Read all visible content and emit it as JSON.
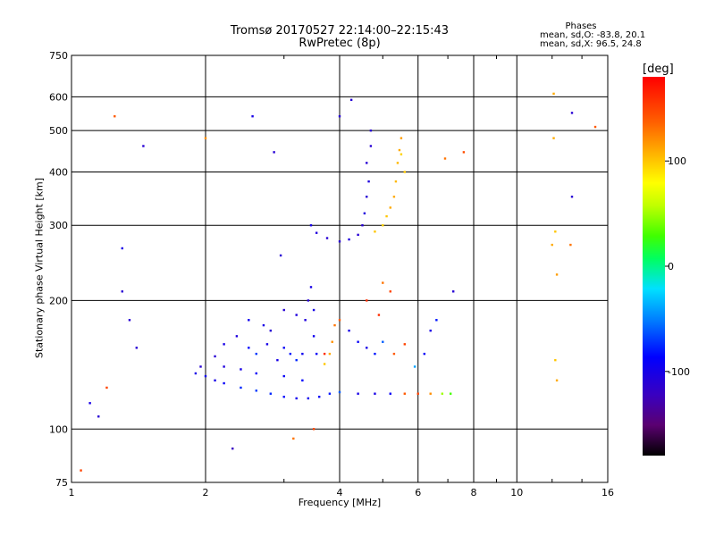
{
  "header": {
    "title_line1": "Tromsø 20170527 22:14:00–22:15:43",
    "title_line2": "RwPretec (8p)"
  },
  "phase_stats": {
    "title": "Phases",
    "o_mode": "mean, sd,O: -83.8, 20.1",
    "x_mode": "mean, sd,X:  96.5, 24.8"
  },
  "colorbar": {
    "label": "[deg]",
    "ticks": [
      {
        "value": 100,
        "label": "100"
      },
      {
        "value": 0,
        "label": "0"
      },
      {
        "value": -100,
        "label": "-100"
      }
    ],
    "range": [
      -180,
      180
    ]
  },
  "chart_data": {
    "type": "scatter",
    "title": "Tromsø 20170527 22:14:00–22:15:43",
    "subtitle": "RwPretec (8p)",
    "xlabel": "Frequency [MHz]",
    "ylabel": "Stationary phase Virtual Height [km]",
    "xscale": "log",
    "yscale": "log",
    "xlim": [
      1,
      16
    ],
    "ylim": [
      75,
      750
    ],
    "x_ticks": [
      1,
      2,
      4,
      6,
      8,
      10,
      16
    ],
    "y_ticks": [
      75,
      100,
      200,
      300,
      400,
      500,
      600,
      750
    ],
    "x_grid": [
      2,
      4,
      6,
      8,
      10
    ],
    "y_grid": [
      100,
      200,
      300,
      400,
      500,
      600
    ],
    "series": [
      {
        "points": [
          [
            1.9,
            135,
            -100
          ],
          [
            2.0,
            133,
            -95
          ],
          [
            2.1,
            130,
            -100
          ],
          [
            2.2,
            128,
            -90
          ],
          [
            2.4,
            125,
            -75
          ],
          [
            2.6,
            123,
            -70
          ],
          [
            2.8,
            121,
            -75
          ],
          [
            3.0,
            119,
            -85
          ],
          [
            3.2,
            118,
            -95
          ],
          [
            3.4,
            118,
            -95
          ],
          [
            3.6,
            119,
            -90
          ],
          [
            3.8,
            121,
            -80
          ],
          [
            4.0,
            122,
            -60
          ],
          [
            4.4,
            121,
            -100
          ],
          [
            4.8,
            121,
            -100
          ],
          [
            5.2,
            121,
            -90
          ],
          [
            5.6,
            121,
            140
          ],
          [
            6.0,
            121,
            150
          ],
          [
            6.4,
            121,
            120
          ],
          [
            6.8,
            121,
            50
          ],
          [
            7.1,
            121,
            30
          ],
          [
            1.95,
            140,
            -110
          ],
          [
            2.1,
            148,
            -110
          ],
          [
            2.2,
            158,
            -100
          ],
          [
            2.35,
            165,
            -105
          ],
          [
            2.5,
            155,
            -85
          ],
          [
            2.6,
            150,
            -70
          ],
          [
            2.75,
            158,
            -100
          ],
          [
            2.8,
            170,
            -110
          ],
          [
            2.9,
            145,
            -100
          ],
          [
            3.0,
            155,
            -90
          ],
          [
            3.1,
            150,
            -80
          ],
          [
            3.2,
            145,
            -75
          ],
          [
            3.3,
            150,
            -95
          ],
          [
            3.35,
            180,
            -105
          ],
          [
            3.4,
            200,
            -110
          ],
          [
            3.45,
            215,
            -100
          ],
          [
            3.5,
            190,
            -100
          ],
          [
            3.5,
            165,
            -95
          ],
          [
            3.55,
            150,
            -90
          ],
          [
            2.5,
            180,
            -95
          ],
          [
            2.7,
            175,
            -100
          ],
          [
            3.0,
            190,
            -110
          ],
          [
            3.2,
            185,
            -105
          ],
          [
            2.2,
            140,
            -105
          ],
          [
            2.4,
            138,
            -100
          ],
          [
            2.6,
            135,
            -90
          ],
          [
            3.0,
            133,
            -90
          ],
          [
            3.3,
            130,
            -85
          ],
          [
            3.7,
            142,
            100
          ],
          [
            3.8,
            150,
            110
          ],
          [
            3.85,
            160,
            120
          ],
          [
            3.9,
            175,
            130
          ],
          [
            4.0,
            180,
            140
          ],
          [
            3.7,
            150,
            160
          ],
          [
            4.2,
            170,
            -100
          ],
          [
            4.4,
            160,
            -90
          ],
          [
            4.6,
            155,
            -100
          ],
          [
            4.8,
            150,
            -80
          ],
          [
            5.0,
            160,
            -60
          ],
          [
            5.3,
            150,
            140
          ],
          [
            5.6,
            158,
            150
          ],
          [
            5.9,
            140,
            -40
          ],
          [
            6.2,
            150,
            -90
          ],
          [
            6.4,
            170,
            -100
          ],
          [
            6.6,
            180,
            -80
          ],
          [
            4.6,
            200,
            160
          ],
          [
            5.0,
            220,
            130
          ],
          [
            5.2,
            210,
            150
          ],
          [
            4.9,
            185,
            160
          ],
          [
            4.0,
            275,
            -110
          ],
          [
            3.75,
            280,
            -110
          ],
          [
            3.55,
            288,
            -105
          ],
          [
            3.45,
            300,
            -100
          ],
          [
            4.2,
            278,
            -105
          ],
          [
            4.4,
            285,
            -110
          ],
          [
            4.5,
            300,
            -110
          ],
          [
            4.55,
            320,
            -105
          ],
          [
            4.6,
            350,
            -110
          ],
          [
            4.65,
            380,
            -105
          ],
          [
            4.6,
            420,
            -110
          ],
          [
            4.7,
            460,
            -110
          ],
          [
            4.7,
            500,
            -110
          ],
          [
            4.8,
            290,
            100
          ],
          [
            5.0,
            300,
            95
          ],
          [
            5.1,
            315,
            100
          ],
          [
            5.2,
            330,
            110
          ],
          [
            5.3,
            350,
            110
          ],
          [
            5.35,
            380,
            105
          ],
          [
            5.4,
            420,
            105
          ],
          [
            5.45,
            450,
            110
          ],
          [
            5.5,
            480,
            115
          ],
          [
            5.6,
            400,
            100
          ],
          [
            5.5,
            440,
            95
          ],
          [
            12.1,
            610,
            110
          ],
          [
            12.1,
            480,
            110
          ],
          [
            12.2,
            290,
            100
          ],
          [
            12.0,
            270,
            110
          ],
          [
            12.3,
            230,
            115
          ],
          [
            12.2,
            145,
            100
          ],
          [
            12.3,
            130,
            110
          ],
          [
            1.1,
            115,
            -100
          ],
          [
            1.15,
            107,
            -110
          ],
          [
            1.3,
            210,
            -110
          ],
          [
            1.3,
            265,
            -100
          ],
          [
            1.45,
            460,
            -110
          ],
          [
            1.35,
            180,
            -110
          ],
          [
            1.4,
            155,
            -110
          ],
          [
            2.55,
            540,
            -100
          ],
          [
            2.3,
            90,
            -120
          ],
          [
            2.95,
            255,
            -110
          ],
          [
            4.0,
            540,
            -110
          ],
          [
            4.25,
            590,
            -110
          ],
          [
            13.3,
            350,
            -110
          ],
          [
            13.3,
            550,
            -110
          ],
          [
            7.2,
            210,
            -110
          ],
          [
            1.25,
            540,
            140
          ],
          [
            1.2,
            125,
            150
          ],
          [
            1.05,
            80,
            150
          ],
          [
            2.0,
            480,
            120
          ],
          [
            2.85,
            445,
            -110
          ],
          [
            3.15,
            95,
            130
          ],
          [
            3.5,
            100,
            150
          ],
          [
            6.9,
            430,
            130
          ],
          [
            7.6,
            445,
            145
          ],
          [
            13.2,
            270,
            130
          ],
          [
            15.0,
            510,
            140
          ]
        ]
      }
    ]
  }
}
